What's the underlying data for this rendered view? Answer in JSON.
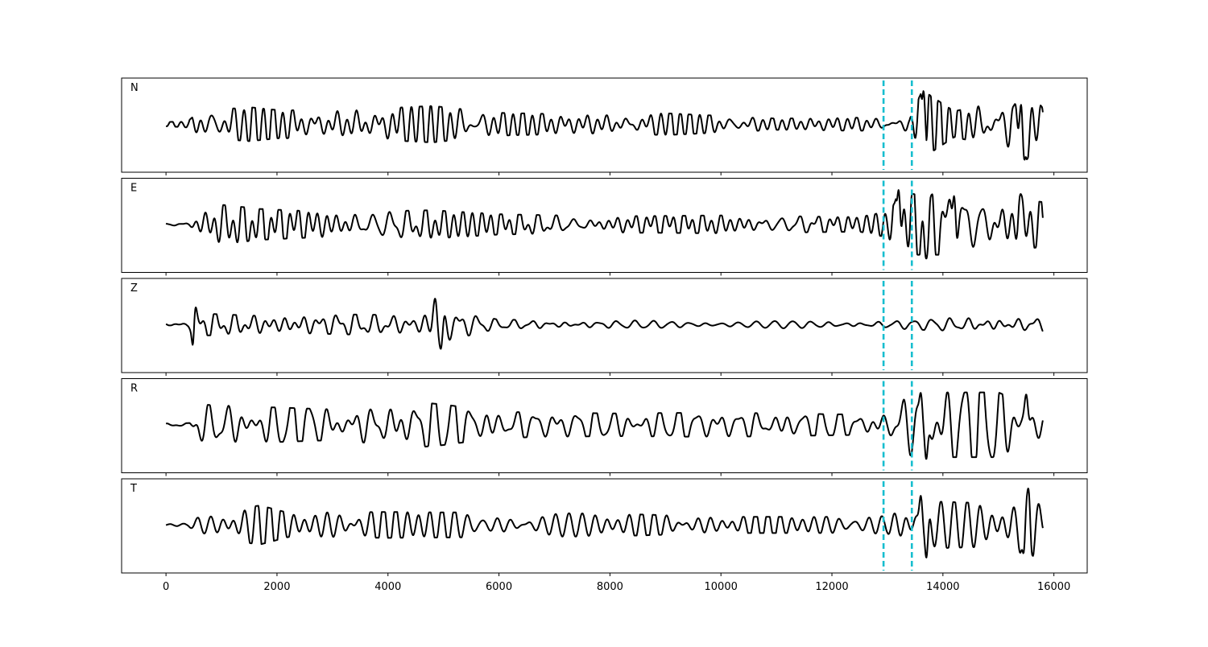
{
  "chart_data": {
    "type": "line",
    "title": "",
    "xlabel": "",
    "ylabel": "",
    "xlim": [
      -800,
      16600
    ],
    "x_ticks": [
      0,
      2000,
      4000,
      6000,
      8000,
      10000,
      12000,
      14000,
      16000
    ],
    "x_tick_labels": [
      "0",
      "2000",
      "4000",
      "6000",
      "8000",
      "10000",
      "12000",
      "14000",
      "16000"
    ],
    "trace_x_range": [
      0,
      15800
    ],
    "y_ticks_shown": false,
    "grid": false,
    "legend": "none",
    "line_color": "#000000",
    "marker_color": "#17becf",
    "markers": [
      {
        "x": 12930,
        "style": "dashed"
      },
      {
        "x": 13440,
        "style": "dashed"
      }
    ],
    "series": [
      {
        "name": "N",
        "envelope": [
          [
            0,
            0.05
          ],
          [
            400,
            0.08
          ],
          [
            600,
            0.32
          ],
          [
            1500,
            0.42
          ],
          [
            2000,
            0.35
          ],
          [
            3000,
            0.33
          ],
          [
            4800,
            0.45
          ],
          [
            6000,
            0.28
          ],
          [
            8000,
            0.22
          ],
          [
            9000,
            0.27
          ],
          [
            11000,
            0.14
          ],
          [
            12500,
            0.16
          ],
          [
            13400,
            0.16
          ],
          [
            13500,
            0.5
          ],
          [
            13650,
            0.82
          ],
          [
            14200,
            0.32
          ],
          [
            15000,
            0.55
          ],
          [
            15500,
            0.88
          ],
          [
            15800,
            0.4
          ]
        ],
        "peaks": [
          {
            "x": 13650,
            "y": 0.82
          },
          {
            "x": 15470,
            "y": -0.88
          },
          {
            "x": 15300,
            "y": 0.5
          }
        ]
      },
      {
        "name": "E",
        "envelope": [
          [
            0,
            0.05
          ],
          [
            400,
            0.08
          ],
          [
            600,
            0.38
          ],
          [
            900,
            0.5
          ],
          [
            1700,
            0.38
          ],
          [
            3000,
            0.3
          ],
          [
            4800,
            0.35
          ],
          [
            6000,
            0.25
          ],
          [
            8000,
            0.2
          ],
          [
            10000,
            0.22
          ],
          [
            12500,
            0.18
          ],
          [
            13000,
            0.32
          ],
          [
            13300,
            0.75
          ],
          [
            14000,
            0.75
          ],
          [
            15000,
            0.7
          ],
          [
            15800,
            0.55
          ]
        ],
        "peaks": [
          {
            "x": 13200,
            "y": 0.85
          },
          {
            "x": 13700,
            "y": -0.85
          },
          {
            "x": 14200,
            "y": 0.7
          },
          {
            "x": 15400,
            "y": 0.75
          }
        ]
      },
      {
        "name": "Z",
        "envelope": [
          [
            0,
            0.02
          ],
          [
            400,
            0.03
          ],
          [
            600,
            0.28
          ],
          [
            1000,
            0.25
          ],
          [
            2000,
            0.2
          ],
          [
            3500,
            0.25
          ],
          [
            4500,
            0.22
          ],
          [
            4900,
            0.55
          ],
          [
            5500,
            0.25
          ],
          [
            6000,
            0.12
          ],
          [
            8000,
            0.1
          ],
          [
            10000,
            0.1
          ],
          [
            12500,
            0.1
          ],
          [
            13500,
            0.12
          ],
          [
            14500,
            0.2
          ],
          [
            15800,
            0.18
          ]
        ],
        "peaks": [
          {
            "x": 500,
            "y": 1.1
          },
          {
            "x": 480,
            "y": -0.5
          },
          {
            "x": 4850,
            "y": 0.65
          },
          {
            "x": 4950,
            "y": -0.6
          }
        ]
      },
      {
        "name": "R",
        "envelope": [
          [
            0,
            0.03
          ],
          [
            400,
            0.06
          ],
          [
            600,
            0.5
          ],
          [
            1500,
            0.45
          ],
          [
            3000,
            0.38
          ],
          [
            4600,
            0.55
          ],
          [
            5000,
            0.5
          ],
          [
            6000,
            0.32
          ],
          [
            8000,
            0.28
          ],
          [
            10000,
            0.3
          ],
          [
            12500,
            0.25
          ],
          [
            13000,
            0.3
          ],
          [
            13300,
            0.75
          ],
          [
            14000,
            0.8
          ],
          [
            15000,
            0.8
          ],
          [
            15800,
            0.3
          ]
        ],
        "peaks": [
          {
            "x": 13600,
            "y": 0.8
          },
          {
            "x": 13700,
            "y": -0.85
          },
          {
            "x": 15500,
            "y": 0.75
          }
        ]
      },
      {
        "name": "T",
        "envelope": [
          [
            0,
            0.02
          ],
          [
            400,
            0.05
          ],
          [
            600,
            0.3
          ],
          [
            1700,
            0.48
          ],
          [
            2200,
            0.3
          ],
          [
            4000,
            0.32
          ],
          [
            6000,
            0.3
          ],
          [
            8000,
            0.28
          ],
          [
            10000,
            0.2
          ],
          [
            12500,
            0.2
          ],
          [
            13000,
            0.22
          ],
          [
            13300,
            0.6
          ],
          [
            14500,
            0.55
          ],
          [
            15300,
            0.55
          ],
          [
            15550,
            0.95
          ],
          [
            15800,
            0.4
          ]
        ],
        "peaks": [
          {
            "x": 13700,
            "y": -0.82
          },
          {
            "x": 13600,
            "y": 0.72
          },
          {
            "x": 15530,
            "y": 0.95
          },
          {
            "x": 15450,
            "y": -0.7
          }
        ]
      }
    ]
  }
}
